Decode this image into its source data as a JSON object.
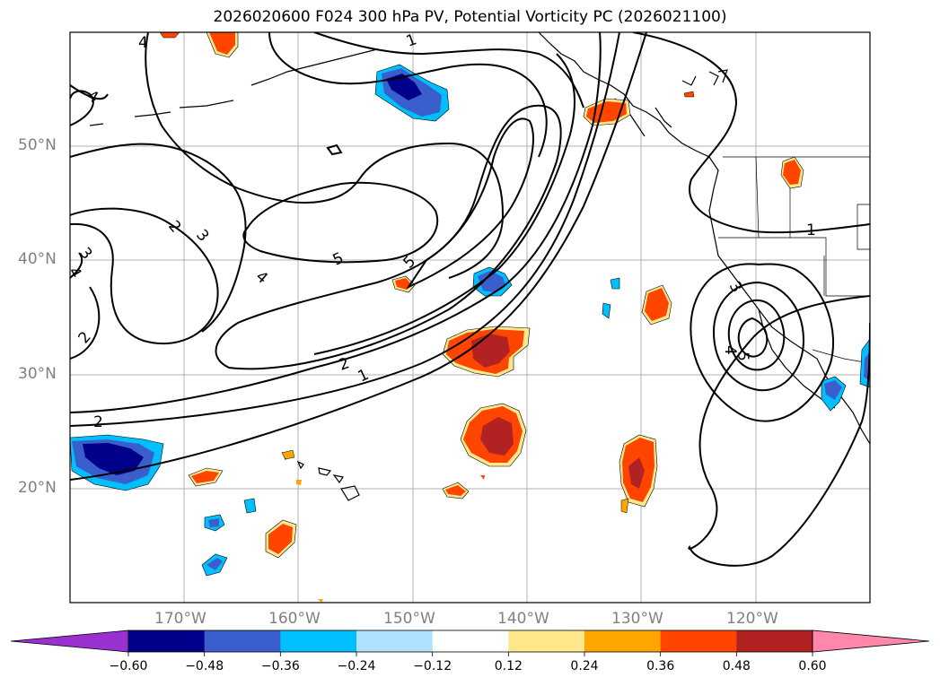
{
  "title": "2026020600 F024 300 hPa PV, Potential Vorticity PC (2026021100)",
  "map": {
    "lat_labels": [
      "50°N",
      "40°N",
      "30°N",
      "20°N"
    ],
    "lon_labels": [
      "170°W",
      "160°W",
      "150°W",
      "140°W",
      "130°W",
      "120°W"
    ],
    "contour_labels": [
      "4",
      "1",
      "4",
      "2",
      "3",
      "3",
      "4",
      "4",
      "5",
      "5",
      "2",
      "1",
      "2",
      "2",
      "5",
      "4",
      "3",
      "1"
    ]
  },
  "colorbar": {
    "ticks": [
      "−0.60",
      "−0.48",
      "−0.36",
      "−0.24",
      "−0.12",
      "0.12",
      "0.24",
      "0.36",
      "0.48",
      "0.60"
    ],
    "colors": [
      "#9b30d0",
      "#00008b",
      "#3a5fcd",
      "#00bfff",
      "#b0e2ff",
      "#ffffff",
      "#ffe88c",
      "#ffa500",
      "#ff4500",
      "#b22222",
      "#ff88aa"
    ]
  }
}
